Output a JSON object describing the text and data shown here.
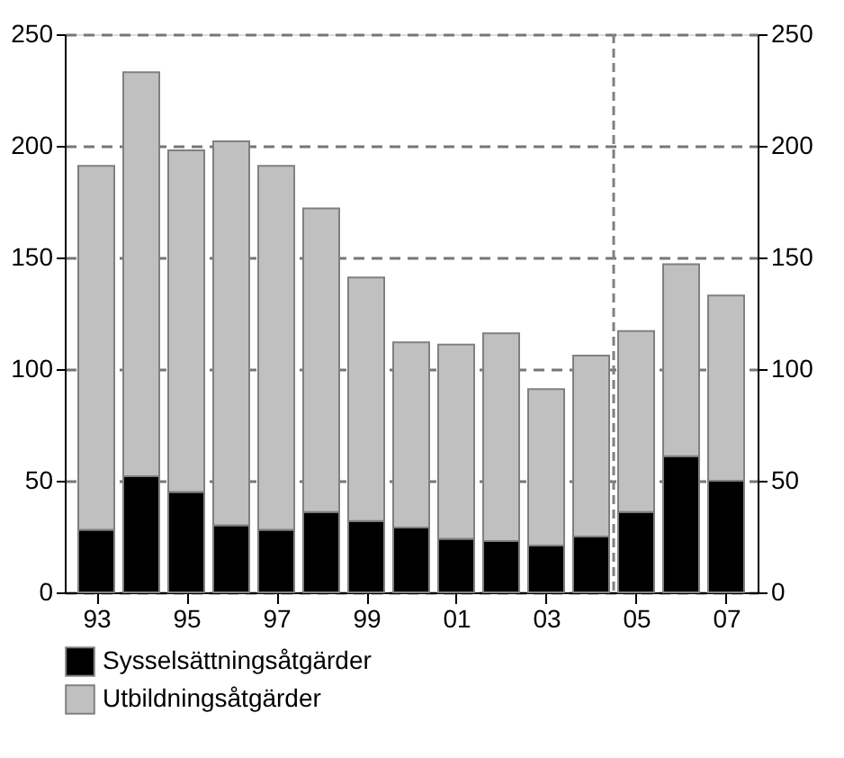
{
  "chart_data": {
    "type": "bar",
    "stacked": true,
    "x": [
      1993,
      1994,
      1995,
      1996,
      1997,
      1998,
      1999,
      2000,
      2001,
      2002,
      2003,
      2004,
      2005,
      2006,
      2007
    ],
    "series": [
      {
        "name": "Sysselsättningsåtgärder",
        "color": "#000000",
        "values": [
          28,
          52,
          45,
          30,
          28,
          36,
          32,
          29,
          24,
          23,
          21,
          25,
          36,
          61,
          50
        ]
      },
      {
        "name": "Utbildningsåtgärder",
        "color": "#c0c0c0",
        "values": [
          163,
          181,
          153,
          172,
          163,
          136,
          109,
          83,
          87,
          93,
          70,
          81,
          81,
          86,
          83
        ]
      }
    ],
    "xlim": [
      1992.5,
      2007.5
    ],
    "xticks": [
      {
        "value": 1993,
        "label": "93"
      },
      {
        "value": 1995,
        "label": "95"
      },
      {
        "value": 1997,
        "label": "97"
      },
      {
        "value": 1999,
        "label": "99"
      },
      {
        "value": 2001,
        "label": "01"
      },
      {
        "value": 2003,
        "label": "03"
      },
      {
        "value": 2005,
        "label": "05"
      },
      {
        "value": 2007,
        "label": "07"
      }
    ],
    "ylim": [
      0,
      250
    ],
    "yticks": [
      0,
      50,
      100,
      150,
      200,
      250
    ],
    "y2lim": [
      0,
      250
    ],
    "y2ticks": [
      0,
      50,
      100,
      150,
      200,
      250
    ],
    "ref_lines": [
      {
        "axis": "x",
        "value": 2004.5,
        "color": "#808080",
        "line_style": "dashed"
      }
    ],
    "grid": "y",
    "legend": "bottom left"
  }
}
